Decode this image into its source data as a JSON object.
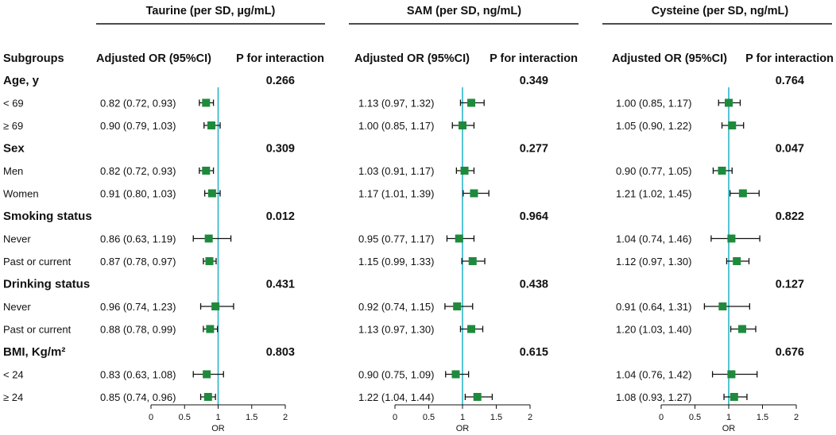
{
  "chart_data": {
    "type": "forest",
    "column_headers": {
      "subgroups": "Subgroups",
      "or_ci": "Adjusted OR (95%CI)",
      "p_interaction": "P for interaction"
    },
    "axis": {
      "xlabel": "OR",
      "xlim": [
        0,
        2
      ],
      "ticks": [
        "0",
        "0.5",
        "1",
        "1.5",
        "2"
      ],
      "reference": 1
    },
    "marker_color": "#1e8a3c",
    "reference_line_color": "#2bb5c8",
    "panels": [
      {
        "title": "Taurine (per SD, µg/mL)",
        "groups": [
          {
            "name": "Age, y",
            "p": "0.266",
            "rows": [
              {
                "label": "< 69",
                "text": "0.82 (0.72, 0.93)",
                "or": 0.82,
                "lo": 0.72,
                "hi": 0.93
              },
              {
                "label": "≥ 69",
                "text": "0.90 (0.79, 1.03)",
                "or": 0.9,
                "lo": 0.79,
                "hi": 1.03
              }
            ]
          },
          {
            "name": "Sex",
            "p": "0.309",
            "rows": [
              {
                "label": "Men",
                "text": "0.82 (0.72, 0.93)",
                "or": 0.82,
                "lo": 0.72,
                "hi": 0.93
              },
              {
                "label": "Women",
                "text": "0.91 (0.80, 1.03)",
                "or": 0.91,
                "lo": 0.8,
                "hi": 1.03
              }
            ]
          },
          {
            "name": "Smoking status",
            "p": "0.012",
            "rows": [
              {
                "label": "Never",
                "text": "0.86 (0.63, 1.19)",
                "or": 0.86,
                "lo": 0.63,
                "hi": 1.19
              },
              {
                "label": "Past or current",
                "text": "0.87 (0.78, 0.97)",
                "or": 0.87,
                "lo": 0.78,
                "hi": 0.97
              }
            ]
          },
          {
            "name": "Drinking status",
            "p": "0.431",
            "rows": [
              {
                "label": "Never",
                "text": "0.96 (0.74, 1.23)",
                "or": 0.96,
                "lo": 0.74,
                "hi": 1.23
              },
              {
                "label": "Past or current",
                "text": "0.88 (0.78, 0.99)",
                "or": 0.88,
                "lo": 0.78,
                "hi": 0.99
              }
            ]
          },
          {
            "name": "BMI, Kg/m²",
            "p": "0.803",
            "rows": [
              {
                "label": "< 24",
                "text": "0.83 (0.63, 1.08)",
                "or": 0.83,
                "lo": 0.63,
                "hi": 1.08
              },
              {
                "label": "≥ 24",
                "text": "0.85 (0.74, 0.96)",
                "or": 0.85,
                "lo": 0.74,
                "hi": 0.96
              }
            ]
          }
        ]
      },
      {
        "title": "SAM (per SD, ng/mL)",
        "groups": [
          {
            "name": "Age, y",
            "p": "0.349",
            "rows": [
              {
                "label": "< 69",
                "text": "1.13 (0.97, 1.32)",
                "or": 1.13,
                "lo": 0.97,
                "hi": 1.32
              },
              {
                "label": "≥ 69",
                "text": "1.00 (0.85, 1.17)",
                "or": 1.0,
                "lo": 0.85,
                "hi": 1.17
              }
            ]
          },
          {
            "name": "Sex",
            "p": "0.277",
            "rows": [
              {
                "label": "Men",
                "text": "1.03 (0.91, 1.17)",
                "or": 1.03,
                "lo": 0.91,
                "hi": 1.17
              },
              {
                "label": "Women",
                "text": "1.17 (1.01, 1.39)",
                "or": 1.17,
                "lo": 1.01,
                "hi": 1.39
              }
            ]
          },
          {
            "name": "Smoking status",
            "p": "0.964",
            "rows": [
              {
                "label": "Never",
                "text": "0.95 (0.77, 1.17)",
                "or": 0.95,
                "lo": 0.77,
                "hi": 1.17
              },
              {
                "label": "Past or current",
                "text": "1.15 (0.99, 1.33)",
                "or": 1.15,
                "lo": 0.99,
                "hi": 1.33
              }
            ]
          },
          {
            "name": "Drinking status",
            "p": "0.438",
            "rows": [
              {
                "label": "Never",
                "text": "0.92 (0.74, 1.15)",
                "or": 0.92,
                "lo": 0.74,
                "hi": 1.15
              },
              {
                "label": "Past or current",
                "text": "1.13 (0.97, 1.30)",
                "or": 1.13,
                "lo": 0.97,
                "hi": 1.3
              }
            ]
          },
          {
            "name": "BMI, Kg/m²",
            "p": "0.615",
            "rows": [
              {
                "label": "< 24",
                "text": "0.90 (0.75, 1.09)",
                "or": 0.9,
                "lo": 0.75,
                "hi": 1.09
              },
              {
                "label": "≥ 24",
                "text": "1.22 (1.04, 1.44)",
                "or": 1.22,
                "lo": 1.04,
                "hi": 1.44
              }
            ]
          }
        ]
      },
      {
        "title": "Cysteine (per SD, ng/mL)",
        "groups": [
          {
            "name": "Age, y",
            "p": "0.764",
            "rows": [
              {
                "label": "< 69",
                "text": "1.00 (0.85, 1.17)",
                "or": 1.0,
                "lo": 0.85,
                "hi": 1.17
              },
              {
                "label": "≥ 69",
                "text": "1.05 (0.90, 1.22)",
                "or": 1.05,
                "lo": 0.9,
                "hi": 1.22
              }
            ]
          },
          {
            "name": "Sex",
            "p": "0.047",
            "rows": [
              {
                "label": "Men",
                "text": "0.90 (0.77, 1.05)",
                "or": 0.9,
                "lo": 0.77,
                "hi": 1.05
              },
              {
                "label": "Women",
                "text": "1.21 (1.02, 1.45)",
                "or": 1.21,
                "lo": 1.02,
                "hi": 1.45
              }
            ]
          },
          {
            "name": "Smoking status",
            "p": "0.822",
            "rows": [
              {
                "label": "Never",
                "text": "1.04 (0.74, 1.46)",
                "or": 1.04,
                "lo": 0.74,
                "hi": 1.46
              },
              {
                "label": "Past or current",
                "text": "1.12 (0.97, 1.30)",
                "or": 1.12,
                "lo": 0.97,
                "hi": 1.3
              }
            ]
          },
          {
            "name": "Drinking status",
            "p": "0.127",
            "rows": [
              {
                "label": "Never",
                "text": "0.91 (0.64, 1.31)",
                "or": 0.91,
                "lo": 0.64,
                "hi": 1.31
              },
              {
                "label": "Past or current",
                "text": "1.20 (1.03, 1.40)",
                "or": 1.2,
                "lo": 1.03,
                "hi": 1.4
              }
            ]
          },
          {
            "name": "BMI, Kg/m²",
            "p": "0.676",
            "rows": [
              {
                "label": "< 24",
                "text": "1.04 (0.76, 1.42)",
                "or": 1.04,
                "lo": 0.76,
                "hi": 1.42
              },
              {
                "label": "≥ 24",
                "text": "1.08 (0.93, 1.27)",
                "or": 1.08,
                "lo": 0.93,
                "hi": 1.27
              }
            ]
          }
        ]
      }
    ]
  }
}
